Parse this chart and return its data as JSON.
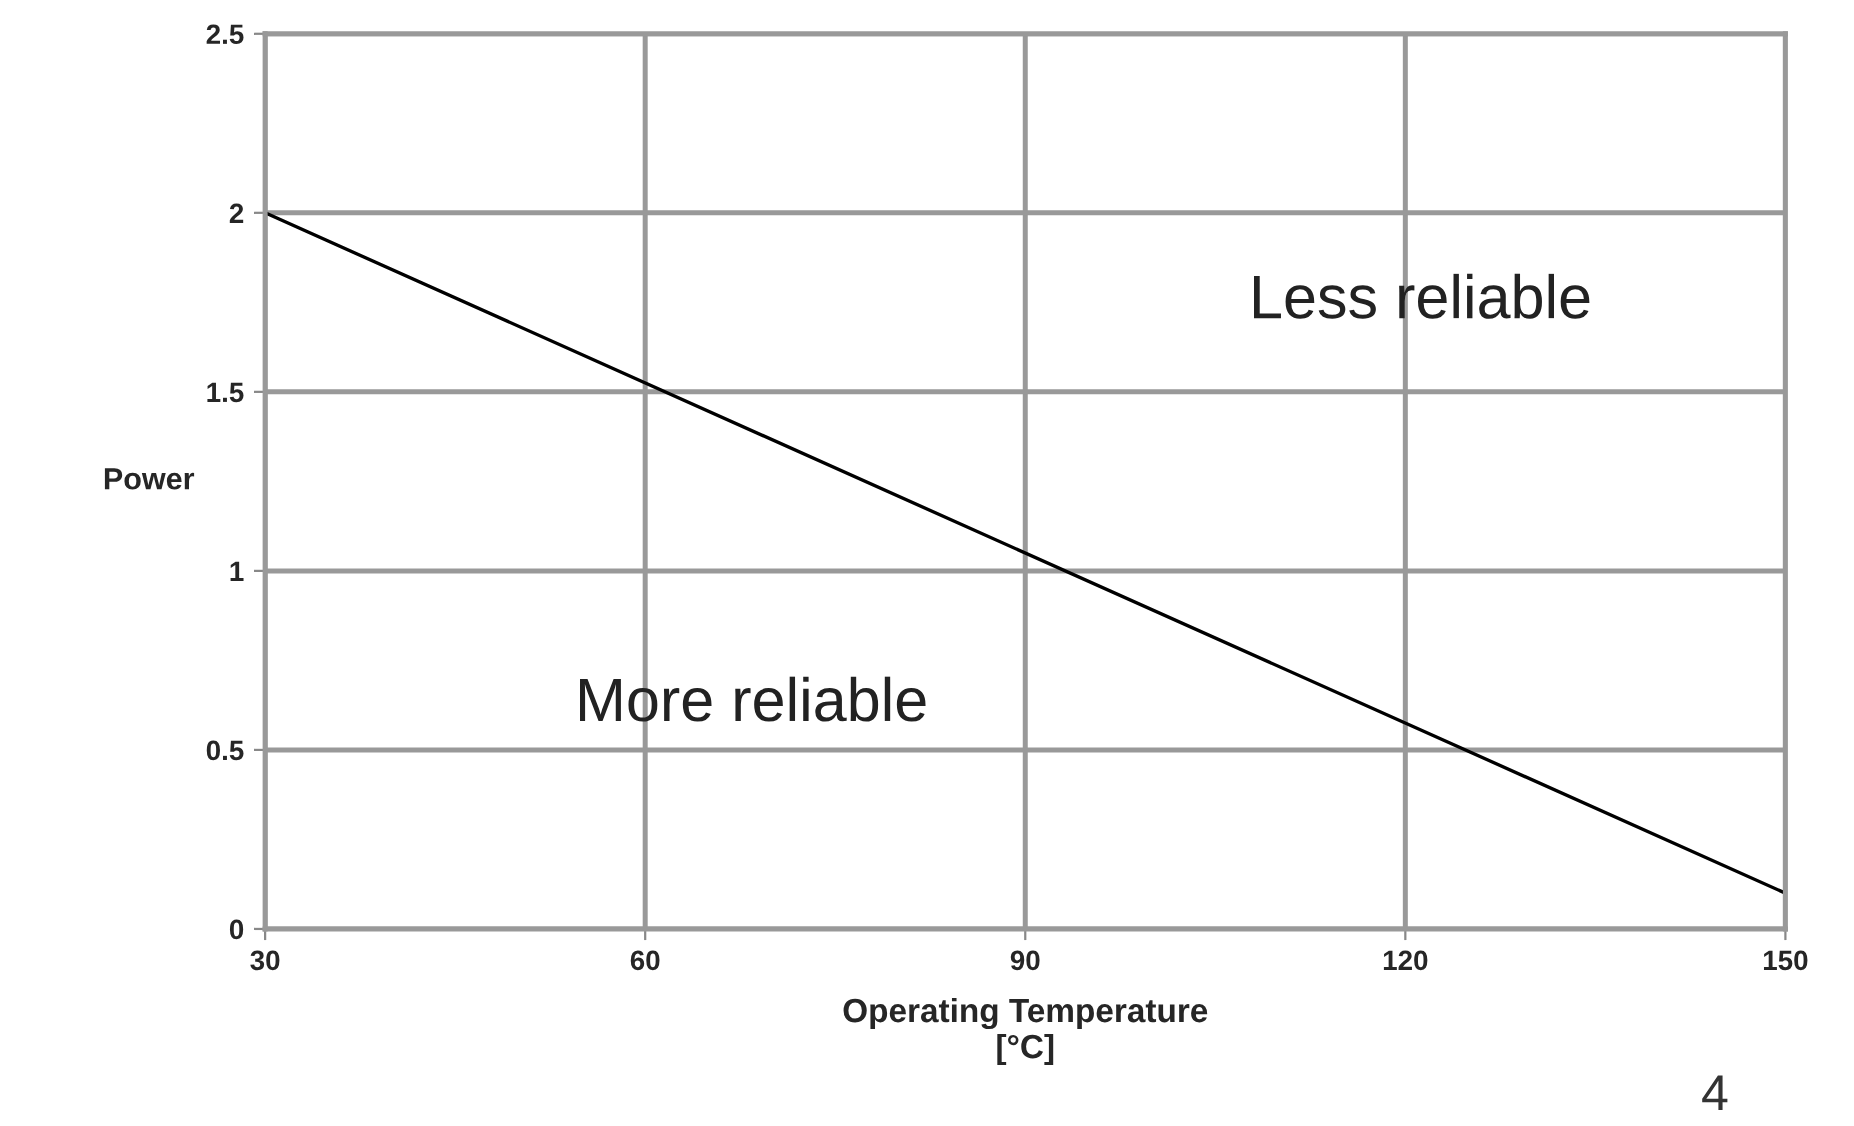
{
  "chart_data": {
    "type": "line",
    "x": [
      30,
      150
    ],
    "series": [
      {
        "color": "#000000",
        "values": [
          2,
          0.1
        ]
      }
    ],
    "xlabel": "Operating Temperature\n[°C]",
    "ylabel": "Power",
    "xlim": [
      30,
      150
    ],
    "xticks": [
      30,
      60,
      90,
      120,
      150
    ],
    "ylim": [
      0,
      2.5
    ],
    "yticks": [
      0,
      0.5,
      1,
      1.5,
      2,
      2.5
    ],
    "grid": true,
    "marker": "none",
    "line_style": "solid",
    "annotations": [
      "Less reliable",
      "More reliable",
      "4"
    ]
  }
}
